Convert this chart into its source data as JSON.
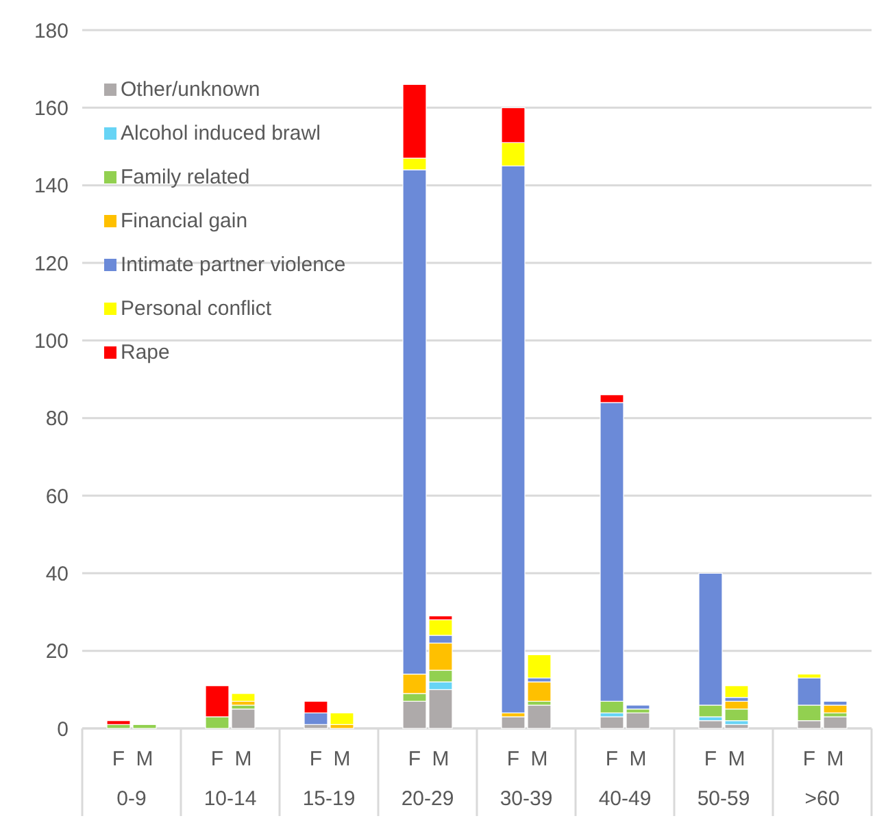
{
  "chart_data": {
    "type": "bar",
    "stacked": true,
    "categories": [
      "F",
      "M",
      "F",
      "M",
      "F",
      "M",
      "F",
      "M",
      "F",
      "M",
      "F",
      "M",
      "F",
      "M",
      "F",
      "M"
    ],
    "annotations": [
      "0-9",
      "10-14",
      "15-19",
      "20-29",
      "30-39",
      "40-49",
      "50-59",
      ">60"
    ],
    "ylim": [
      0,
      180
    ],
    "yticks": [
      0,
      20,
      40,
      60,
      80,
      100,
      120,
      140,
      160,
      180
    ],
    "grid": "y",
    "legend": "top left",
    "series": [
      {
        "name": "Other/unknown",
        "color": "#aeaaaa",
        "values": [
          0,
          0,
          0,
          5,
          1,
          0,
          7,
          10,
          3,
          6,
          3,
          4,
          2,
          1,
          2,
          3
        ]
      },
      {
        "name": "Alcohol induced brawl",
        "color": "#67d4f5",
        "values": [
          0,
          0,
          0,
          0,
          0,
          0,
          0,
          2,
          0,
          0,
          1,
          0,
          1,
          1,
          0,
          0
        ]
      },
      {
        "name": "Family related",
        "color": "#92d050",
        "values": [
          1,
          1,
          3,
          1,
          0,
          0,
          2,
          3,
          0,
          1,
          3,
          1,
          3,
          3,
          4,
          1
        ]
      },
      {
        "name": "Financial gain",
        "color": "#ffc000",
        "values": [
          0,
          0,
          0,
          1,
          0,
          1,
          5,
          7,
          1,
          5,
          0,
          0,
          0,
          2,
          0,
          2
        ]
      },
      {
        "name": "Intimate partner violence",
        "color": "#6b8ad8",
        "values": [
          0,
          0,
          0,
          0,
          3,
          0,
          130,
          2,
          141,
          1,
          77,
          1,
          34,
          1,
          7,
          1
        ]
      },
      {
        "name": "Personal conflict",
        "color": "#ffff00",
        "values": [
          0,
          0,
          0,
          2,
          0,
          3,
          3,
          4,
          6,
          6,
          0,
          0,
          0,
          3,
          1,
          0
        ]
      },
      {
        "name": "Rape",
        "color": "#ff0000",
        "values": [
          1,
          0,
          8,
          0,
          3,
          0,
          19,
          1,
          9,
          0,
          2,
          0,
          0,
          0,
          0,
          0
        ]
      }
    ]
  }
}
